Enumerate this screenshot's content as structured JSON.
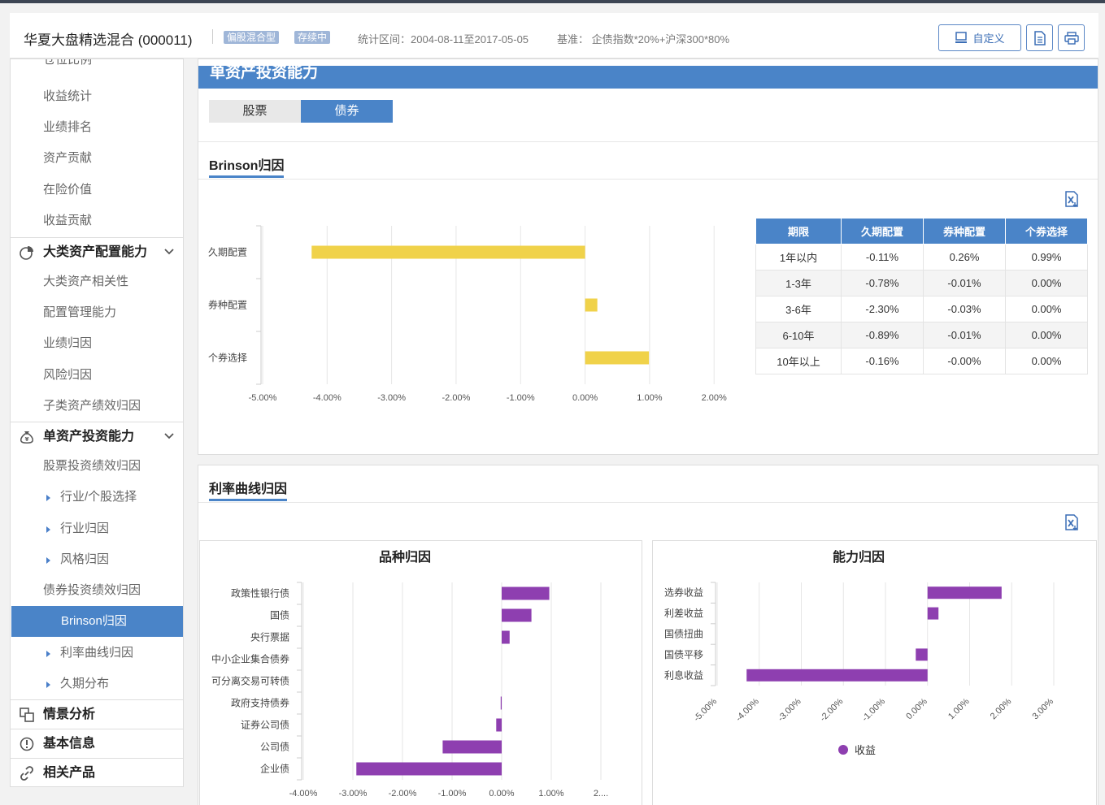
{
  "header": {
    "fund_title": "华夏大盘精选混合 (000011)",
    "badges": [
      "偏股混合型",
      "存续中"
    ],
    "period": "统计区间：2004-08-11至2017-05-05",
    "benchmark": "基准： 企债指数*20%+沪深300*80%",
    "custom_label": "自定义",
    "icons": [
      "monitor-icon",
      "document-icon",
      "print-icon"
    ]
  },
  "sidebar": {
    "cut_top": "仓位比例",
    "items_a": [
      "收益统计",
      "业绩排名",
      "资产贡献",
      "在险价值",
      "收益贡献"
    ],
    "group1": "大类资产配置能力",
    "items_b": [
      "大类资产相关性",
      "配置管理能力",
      "业绩归因",
      "风险归因",
      "子类资产绩效归因"
    ],
    "group2": "单资产投资能力",
    "items_c": [
      "股票投资绩效归因"
    ],
    "subs_c": [
      "行业/个股选择",
      "行业归因",
      "风格归因"
    ],
    "items_d": [
      "债券投资绩效归因"
    ],
    "active": "Brinson归因",
    "subs_d": [
      "利率曲线归因",
      "久期分布"
    ],
    "group3": "情景分析",
    "group4": "基本信息",
    "group5": "相关产品"
  },
  "main": {
    "section_title": "单资产投资能力",
    "tabs": [
      {
        "label": "股票"
      },
      {
        "label": "债券"
      }
    ],
    "active_tab": 1,
    "brinson_title": "Brinson归因",
    "curve_title": "利率曲线归因"
  },
  "table": {
    "headers": [
      "期限",
      "久期配置",
      "券种配置",
      "个券选择"
    ],
    "rows": [
      [
        "1年以内",
        "-0.11%",
        "0.26%",
        "0.99%"
      ],
      [
        "1-3年",
        "-0.78%",
        "-0.01%",
        "0.00%"
      ],
      [
        "3-6年",
        "-2.30%",
        "-0.03%",
        "0.00%"
      ],
      [
        "6-10年",
        "-0.89%",
        "-0.01%",
        "0.00%"
      ],
      [
        "10年以上",
        "-0.16%",
        "-0.00%",
        "0.00%"
      ]
    ]
  },
  "colors": {
    "accent": "#4a84c8",
    "bar_yellow": "#f0d24a",
    "bar_purple": "#8e3fb0"
  },
  "chart_data": [
    {
      "type": "bar",
      "orientation": "horizontal",
      "categories": [
        "久期配置",
        "券种配置",
        "个券选择"
      ],
      "values": [
        -4.24,
        0.19,
        0.99
      ],
      "xlim": [
        -5,
        2.3
      ],
      "ticks": [
        -5,
        -4,
        -3,
        -2,
        -1,
        0,
        1,
        2
      ],
      "tick_labels": [
        "-5.00%",
        "-4.00%",
        "-3.00%",
        "-2.00%",
        "-1.00%",
        "0.00%",
        "1.00%",
        "2.00%"
      ],
      "grid": true
    },
    {
      "type": "bar",
      "orientation": "horizontal",
      "title": "品种归因",
      "categories": [
        "政策性银行债",
        "国债",
        "央行票据",
        "中小企业集合债券",
        "可分离交易可转债",
        "政府支持债券",
        "证券公司债",
        "公司债",
        "企业债"
      ],
      "values": [
        0.96,
        0.6,
        0.16,
        0.0,
        0.0,
        -0.02,
        -0.11,
        -1.19,
        -2.93
      ],
      "xlim": [
        -4,
        2
      ],
      "ticks": [
        -4,
        -3,
        -2,
        -1,
        0,
        1,
        2
      ],
      "tick_labels": [
        "-4.00%",
        "-3.00%",
        "-2.00%",
        "-1.00%",
        "0.00%",
        "1.00%",
        "2...."
      ],
      "grid": true
    },
    {
      "type": "bar",
      "orientation": "horizontal",
      "title": "能力归因",
      "categories": [
        "选券收益",
        "利差收益",
        "国债扭曲",
        "国债平移",
        "利息收益"
      ],
      "values": [
        1.76,
        0.26,
        0.0,
        -0.28,
        -4.3
      ],
      "xlim": [
        -5,
        3
      ],
      "ticks": [
        -5,
        -4,
        -3,
        -2,
        -1,
        0,
        1,
        2,
        3
      ],
      "tick_labels": [
        "-5.00%",
        "-4.00%",
        "-3.00%",
        "-2.00%",
        "-1.00%",
        "0.00%",
        "1.00%",
        "2.00%",
        "3.00%"
      ],
      "legend": "bottom",
      "series_name": "收益",
      "grid": true
    }
  ]
}
